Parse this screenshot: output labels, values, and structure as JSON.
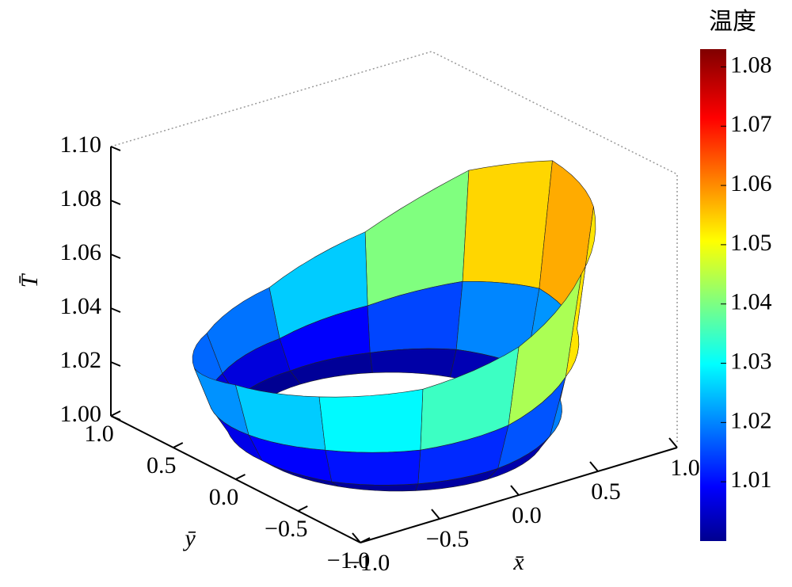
{
  "chart_data": {
    "type": "surface3d",
    "zlabel": "T̄",
    "xlabel": "x̄",
    "ylabel": "ȳ",
    "r": [
      0.75,
      0.833,
      0.917,
      1.0
    ],
    "theta_deg": [
      -180,
      -150,
      -120,
      -90,
      -60,
      -30,
      0,
      30,
      60,
      90,
      120,
      150
    ],
    "values": [
      [
        1.0,
        1.0,
        1.0,
        1.0,
        1.0,
        1.0,
        1.0,
        1.0,
        1.0,
        1.0,
        1.0,
        1.0
      ],
      [
        1.004,
        1.004,
        1.005,
        1.006,
        1.008,
        1.009,
        1.009,
        1.008,
        1.005,
        1.003,
        1.003,
        1.003
      ],
      [
        1.015,
        1.018,
        1.02,
        1.024,
        1.031,
        1.035,
        1.037,
        1.031,
        1.02,
        1.013,
        1.011,
        1.012
      ],
      [
        1.035,
        1.04,
        1.045,
        1.055,
        1.07,
        1.08,
        1.083,
        1.07,
        1.045,
        1.03,
        1.025,
        1.027
      ]
    ],
    "xlim": [
      -1,
      1
    ],
    "ylim": [
      -1,
      1
    ],
    "zlim": [
      1.0,
      1.1
    ],
    "xticks": [
      {
        "value": -1,
        "label": "−1.0"
      },
      {
        "value": -0.5,
        "label": "−0.5"
      },
      {
        "value": 0,
        "label": "0.0"
      },
      0.5,
      {
        "value": 1,
        "label": "1.0"
      }
    ],
    "yticks": [
      {
        "value": 1,
        "label": "1.0"
      },
      0.5,
      {
        "value": 0,
        "label": "0.0"
      },
      {
        "value": -0.5,
        "label": "−0.5"
      },
      {
        "value": -1,
        "label": "−1.0"
      }
    ],
    "zticks": [
      {
        "value": 1.0,
        "label": "1.00"
      },
      1.02,
      1.04,
      1.06,
      1.08,
      {
        "value": 1.1,
        "label": "1.10"
      }
    ],
    "colormap": "jet",
    "colorbar": {
      "label": "温度",
      "lim": [
        1.0,
        1.083
      ],
      "ticks": [
        1.01,
        1.02,
        1.03,
        1.04,
        1.05,
        1.06,
        1.07,
        1.08
      ]
    }
  }
}
